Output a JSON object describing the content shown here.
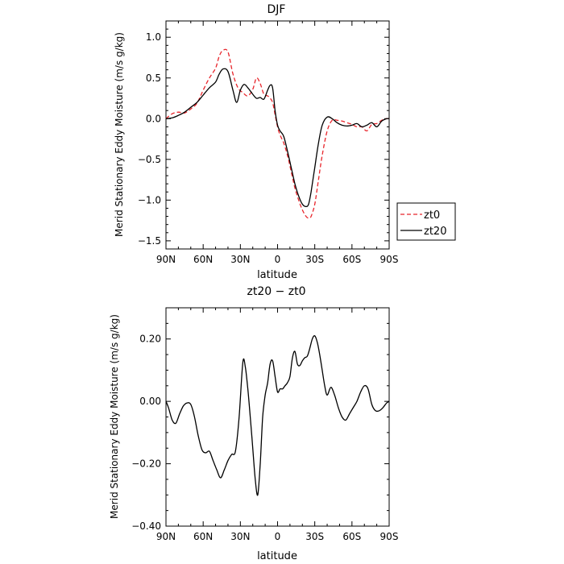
{
  "chart_data": [
    {
      "type": "line",
      "title": "DJF",
      "xlabel": "latitude",
      "ylabel": "Merid Stationary Eddy Moisture (m/s g/kg)",
      "xlim": [
        90,
        -90
      ],
      "ylim": [
        -1.6,
        1.2
      ],
      "x_ticks": [
        90,
        60,
        30,
        0,
        -30,
        -60,
        -90
      ],
      "x_tick_labels": [
        "90N",
        "60N",
        "30N",
        "0",
        "30S",
        "60S",
        "90S"
      ],
      "y_ticks": [
        1.0,
        0.5,
        0.0,
        -0.5,
        -1.0,
        -1.5
      ],
      "y_tick_labels": [
        "1.0",
        "0.5",
        "0.0",
        "−0.5",
        "−1.0",
        "−1.5"
      ],
      "legend": "right",
      "series": [
        {
          "name": "zt0",
          "color": "#e8252b",
          "dash": "dashed",
          "x": [
            90,
            85,
            80,
            75,
            70,
            65,
            60,
            55,
            50,
            47,
            44,
            40,
            36,
            32,
            28,
            24,
            20,
            17,
            14,
            11,
            8,
            6,
            4,
            2,
            0,
            -2,
            -5,
            -8,
            -11,
            -14,
            -17,
            -20,
            -23,
            -25,
            -27,
            -30,
            -33,
            -36,
            -40,
            -44,
            -48,
            -52,
            -56,
            -60,
            -64,
            -68,
            -72,
            -76,
            -80,
            -84,
            -88,
            -90
          ],
          "y": [
            0.0,
            0.06,
            0.08,
            0.07,
            0.12,
            0.19,
            0.35,
            0.5,
            0.62,
            0.77,
            0.84,
            0.82,
            0.55,
            0.38,
            0.32,
            0.28,
            0.36,
            0.5,
            0.43,
            0.3,
            0.28,
            0.25,
            0.2,
            0.05,
            -0.1,
            -0.2,
            -0.3,
            -0.45,
            -0.65,
            -0.85,
            -1.0,
            -1.12,
            -1.2,
            -1.22,
            -1.2,
            -1.05,
            -0.75,
            -0.45,
            -0.15,
            -0.02,
            -0.02,
            -0.03,
            -0.05,
            -0.07,
            -0.1,
            -0.1,
            -0.15,
            -0.07,
            -0.06,
            -0.02,
            0.0,
            0.0
          ]
        },
        {
          "name": "zt20",
          "color": "#000000",
          "dash": "solid",
          "x": [
            90,
            85,
            80,
            75,
            70,
            65,
            60,
            55,
            50,
            47,
            44,
            40,
            36,
            33,
            30,
            27,
            24,
            20,
            17,
            14,
            11,
            8,
            6,
            4,
            2,
            0,
            -2,
            -5,
            -8,
            -11,
            -14,
            -17,
            -20,
            -23,
            -25,
            -27,
            -30,
            -33,
            -36,
            -40,
            -44,
            -48,
            -52,
            -56,
            -60,
            -64,
            -68,
            -72,
            -76,
            -80,
            -84,
            -88,
            -90
          ],
          "y": [
            0.0,
            0.01,
            0.04,
            0.08,
            0.14,
            0.2,
            0.29,
            0.38,
            0.45,
            0.55,
            0.61,
            0.58,
            0.35,
            0.2,
            0.35,
            0.42,
            0.38,
            0.3,
            0.25,
            0.26,
            0.24,
            0.35,
            0.41,
            0.38,
            0.1,
            -0.08,
            -0.15,
            -0.22,
            -0.4,
            -0.6,
            -0.8,
            -0.95,
            -1.05,
            -1.08,
            -1.05,
            -0.9,
            -0.6,
            -0.3,
            -0.08,
            0.02,
            0.0,
            -0.05,
            -0.08,
            -0.09,
            -0.08,
            -0.06,
            -0.1,
            -0.08,
            -0.05,
            -0.1,
            -0.03,
            0.0,
            0.0
          ]
        }
      ]
    },
    {
      "type": "line",
      "title": "zt20 − zt0",
      "xlabel": "latitude",
      "ylabel": "Merid Stationary Eddy Moisture (m/s g/kg)",
      "xlim": [
        90,
        -90
      ],
      "ylim": [
        -0.4,
        0.3
      ],
      "x_ticks": [
        90,
        60,
        30,
        0,
        -30,
        -60,
        -90
      ],
      "x_tick_labels": [
        "90N",
        "60N",
        "30N",
        "0",
        "30S",
        "60S",
        "90S"
      ],
      "y_ticks": [
        0.2,
        0.0,
        -0.2,
        -0.4
      ],
      "y_tick_labels": [
        "0.20",
        "0.00",
        "−0.20",
        "−0.40"
      ],
      "series": [
        {
          "color": "#000000",
          "dash": "solid",
          "x": [
            90,
            88,
            85,
            82,
            79,
            76,
            73,
            70,
            67,
            64,
            61,
            58,
            55,
            52,
            49,
            46,
            43,
            40,
            37,
            34,
            31,
            28,
            26,
            24,
            22,
            20,
            18,
            16,
            14,
            12,
            10,
            8,
            6,
            4,
            2,
            0,
            -2,
            -4,
            -6,
            -8,
            -10,
            -12,
            -14,
            -16,
            -18,
            -20,
            -22,
            -24,
            -26,
            -28,
            -30,
            -32,
            -34,
            -36,
            -38,
            -40,
            -43,
            -46,
            -49,
            -52,
            -55,
            -58,
            -61,
            -64,
            -67,
            -70,
            -73,
            -76,
            -79,
            -82,
            -85,
            -88,
            -90
          ],
          "y": [
            0.0,
            -0.02,
            -0.06,
            -0.07,
            -0.04,
            -0.015,
            -0.005,
            -0.01,
            -0.05,
            -0.11,
            -0.155,
            -0.165,
            -0.16,
            -0.19,
            -0.22,
            -0.245,
            -0.22,
            -0.19,
            -0.17,
            -0.16,
            -0.05,
            0.125,
            0.11,
            0.04,
            -0.05,
            -0.15,
            -0.25,
            -0.3,
            -0.2,
            -0.05,
            0.02,
            0.06,
            0.12,
            0.13,
            0.08,
            0.03,
            0.04,
            0.04,
            0.05,
            0.06,
            0.08,
            0.14,
            0.16,
            0.12,
            0.115,
            0.13,
            0.14,
            0.145,
            0.17,
            0.2,
            0.21,
            0.19,
            0.15,
            0.1,
            0.05,
            0.02,
            0.045,
            0.02,
            -0.02,
            -0.05,
            -0.06,
            -0.04,
            -0.02,
            0.0,
            0.03,
            0.05,
            0.04,
            -0.01,
            -0.03,
            -0.03,
            -0.02,
            -0.005,
            0.0
          ]
        }
      ]
    }
  ]
}
